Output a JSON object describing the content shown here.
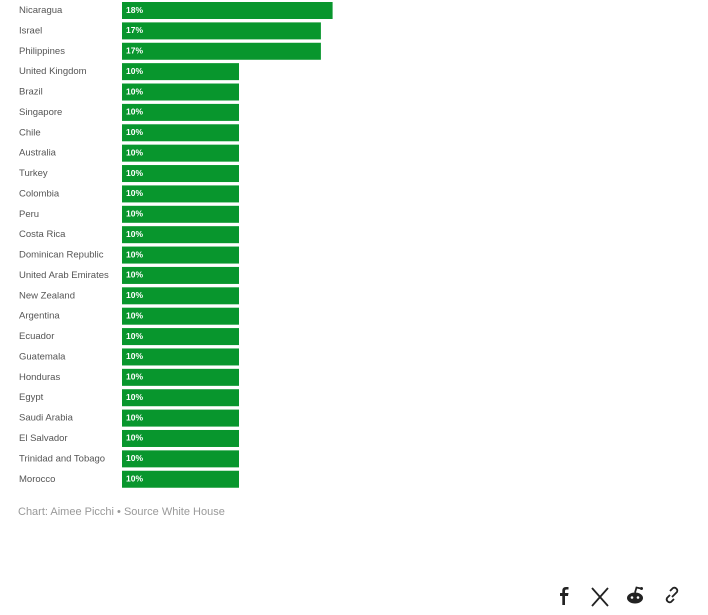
{
  "chart_data": {
    "type": "bar",
    "orientation": "horizontal",
    "categories": [
      "Nicaragua",
      "Israel",
      "Philippines",
      "United Kingdom",
      "Brazil",
      "Singapore",
      "Chile",
      "Australia",
      "Turkey",
      "Colombia",
      "Peru",
      "Costa Rica",
      "Dominican Republic",
      "United Arab Emirates",
      "New Zealand",
      "Argentina",
      "Ecuador",
      "Guatemala",
      "Honduras",
      "Egypt",
      "Saudi Arabia",
      "El Salvador",
      "Trinidad and Tobago",
      "Morocco"
    ],
    "values": [
      18,
      17,
      17,
      10,
      10,
      10,
      10,
      10,
      10,
      10,
      10,
      10,
      10,
      10,
      10,
      10,
      10,
      10,
      10,
      10,
      10,
      10,
      10,
      10
    ],
    "value_labels": [
      "18%",
      "17%",
      "17%",
      "10%",
      "10%",
      "10%",
      "10%",
      "10%",
      "10%",
      "10%",
      "10%",
      "10%",
      "10%",
      "10%",
      "10%",
      "10%",
      "10%",
      "10%",
      "10%",
      "10%",
      "10%",
      "10%",
      "10%",
      "10%"
    ],
    "color": "#08962d",
    "caption": "Chart: Aimee Picchi • Source White House"
  }
}
